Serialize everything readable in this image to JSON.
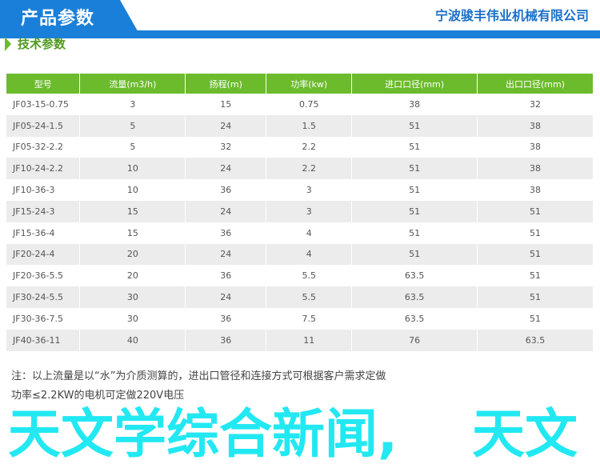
{
  "header": {
    "title": "产品参数",
    "company": "宁波骏丰伟业机械有限公司",
    "accent": "#1a7fd8"
  },
  "section": {
    "title": "技术参数",
    "accent": "#6cbb2c"
  },
  "table": {
    "columns": [
      "型号",
      "流量(m3/h)",
      "扬程(m)",
      "功率(kw)",
      "进口口径(mm)",
      "出口口径(mm)"
    ],
    "rows": [
      [
        "JF03-15-0.75",
        "3",
        "15",
        "0.75",
        "38",
        "32"
      ],
      [
        "JF05-24-1.5",
        "5",
        "24",
        "1.5",
        "51",
        "38"
      ],
      [
        "JF05-32-2.2",
        "5",
        "32",
        "2.2",
        "51",
        "38"
      ],
      [
        "JF10-24-2.2",
        "10",
        "24",
        "2.2",
        "51",
        "38"
      ],
      [
        "JF10-36-3",
        "10",
        "36",
        "3",
        "51",
        "38"
      ],
      [
        "JF15-24-3",
        "15",
        "24",
        "3",
        "51",
        "51"
      ],
      [
        "JF15-36-4",
        "15",
        "36",
        "4",
        "51",
        "51"
      ],
      [
        "JF20-24-4",
        "20",
        "24",
        "4",
        "51",
        "51"
      ],
      [
        "JF20-36-5.5",
        "20",
        "36",
        "5.5",
        "63.5",
        "51"
      ],
      [
        "JF30-24-5.5",
        "30",
        "24",
        "5.5",
        "63.5",
        "51"
      ],
      [
        "JF30-36-7.5",
        "30",
        "36",
        "7.5",
        "63.5",
        "51"
      ],
      [
        "JF40-36-11",
        "40",
        "36",
        "11",
        "76",
        "63.5"
      ]
    ]
  },
  "notes": [
    "注：以上流量是以“水”为介质测算的，进出口管径和连接方式可根据客户需求定做",
    "功率≤2.2KW的电机可定做220V电压"
  ],
  "watermark": "宁波骏丰伟业机械有限公司",
  "overlay": {
    "line1": "天文学综合新闻,",
    "line2": "天文",
    "color": "#22e8f2"
  }
}
